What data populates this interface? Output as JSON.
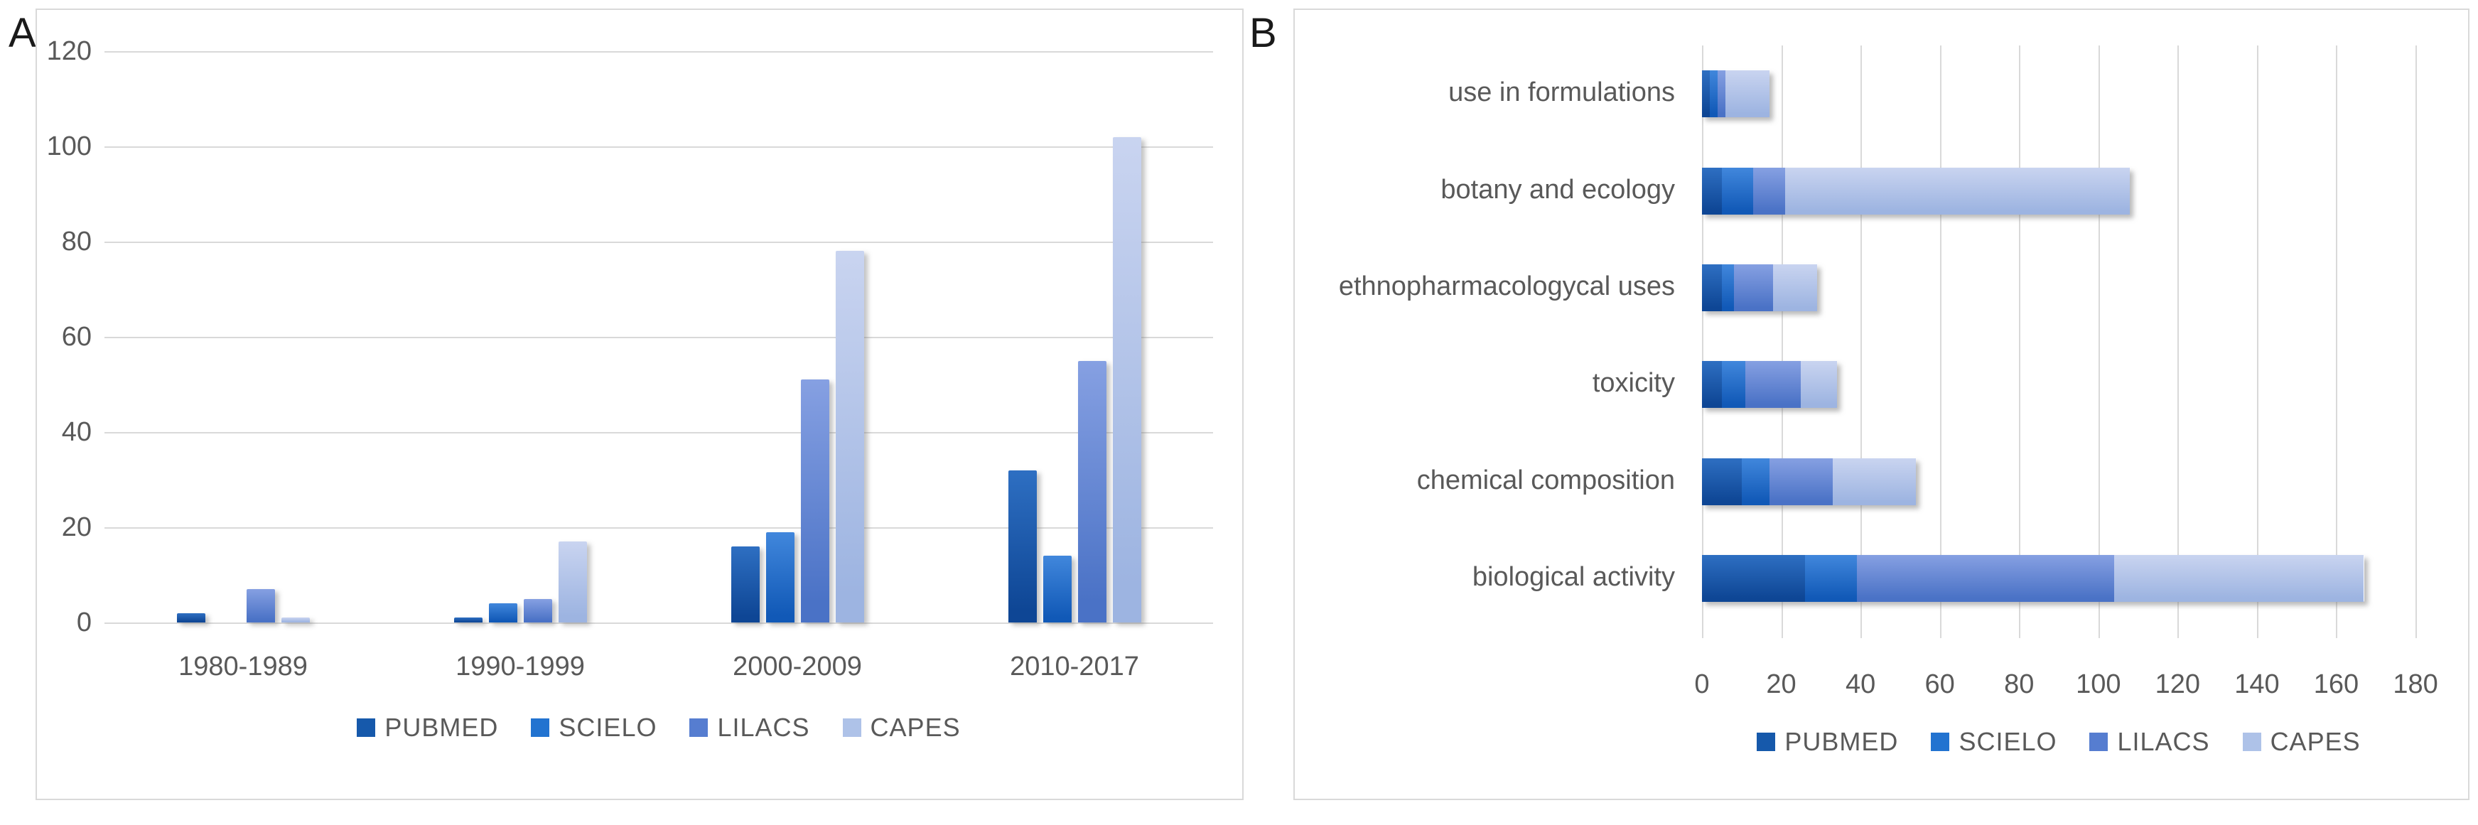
{
  "figure": {
    "panels": [
      {
        "label": "A"
      },
      {
        "label": "B"
      }
    ]
  },
  "palette": {
    "background": "#ffffff",
    "panel_border": "#d9d9d9",
    "gridline": "#d9d9d9",
    "axis_text": "#595959",
    "pubmed": "#1659ab",
    "scielo": "#2273d0",
    "lilacs": "#567dd0",
    "capes": "#aec2e8"
  },
  "chart_data": [
    {
      "panel": "A",
      "type": "bar",
      "title": "",
      "xlabel": "",
      "ylabel": "",
      "categories": [
        "1980-1989",
        "1990-1999",
        "2000-2009",
        "2010-2017"
      ],
      "series": [
        {
          "name": "PUBMED",
          "color": "#1659ab",
          "gradient": [
            "#2e6fc2",
            "#0e4695"
          ],
          "values": [
            2,
            1,
            16,
            32
          ]
        },
        {
          "name": "SCIELO",
          "color": "#2273d0",
          "gradient": [
            "#4187dc",
            "#1159b7"
          ],
          "values": [
            0,
            4,
            19,
            14
          ]
        },
        {
          "name": "LILACS",
          "color": "#567dd0",
          "gradient": [
            "#86a0e2",
            "#4a72c6"
          ],
          "values": [
            7,
            5,
            51,
            55
          ]
        },
        {
          "name": "CAPES",
          "color": "#aec2e8",
          "gradient": [
            "#c9d4f0",
            "#9db4e1"
          ],
          "values": [
            1,
            17,
            78,
            102
          ]
        }
      ],
      "ylim": [
        0,
        120
      ],
      "yticks": [
        0,
        20,
        40,
        60,
        80,
        100,
        120
      ],
      "grid": "horizontal",
      "legend_position": "bottom"
    },
    {
      "panel": "B",
      "type": "stacked-bar-horizontal",
      "title": "",
      "xlabel": "",
      "ylabel": "",
      "categories": [
        "use in formulations",
        "botany and ecology",
        "ethnopharmacologycal uses",
        "toxicity",
        "chemical composition",
        "biological activity"
      ],
      "series": [
        {
          "name": "PUBMED",
          "color": "#1659ab",
          "gradient": [
            "#2e6fc2",
            "#0e4695"
          ],
          "values": [
            2,
            5,
            5,
            5,
            10,
            26
          ]
        },
        {
          "name": "SCIELO",
          "color": "#2273d0",
          "gradient": [
            "#4187dc",
            "#1159b7"
          ],
          "values": [
            2,
            8,
            3,
            6,
            7,
            13
          ]
        },
        {
          "name": "LILACS",
          "color": "#567dd0",
          "gradient": [
            "#86a0e2",
            "#4a72c6"
          ],
          "values": [
            2,
            8,
            10,
            14,
            16,
            65
          ]
        },
        {
          "name": "CAPES",
          "color": "#aec2e8",
          "gradient": [
            "#c9d4f0",
            "#9db4e1"
          ],
          "values": [
            11,
            87,
            11,
            9,
            21,
            63
          ]
        }
      ],
      "xlim": [
        0,
        180
      ],
      "xticks": [
        0,
        20,
        40,
        60,
        80,
        100,
        120,
        140,
        160,
        180
      ],
      "grid": "vertical",
      "legend_position": "bottom"
    }
  ]
}
